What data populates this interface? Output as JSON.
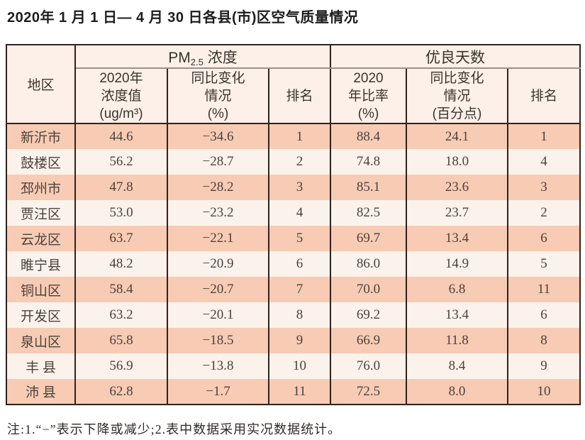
{
  "title": "2020年 1 月 1 日— 4 月 30 日各县(市)区空气质量情况",
  "table": {
    "region_header": "地区",
    "pm25_group": {
      "prefix": "PM",
      "subscript": "2.5",
      "suffix": " 浓度"
    },
    "days_group": "优良天数",
    "sub_headers": [
      {
        "id": "pm-value",
        "lines": [
          "2020年",
          "浓度值",
          "(ug/m³)"
        ]
      },
      {
        "id": "pm-change",
        "lines": [
          "同比变化",
          "情况",
          "(%)"
        ]
      },
      {
        "id": "pm-rank",
        "lines": [
          "排名"
        ]
      },
      {
        "id": "days-rate",
        "lines": [
          "2020",
          "年比率",
          "(%)"
        ]
      },
      {
        "id": "days-change",
        "lines": [
          "同比变化",
          "情况",
          "(百分点)"
        ]
      },
      {
        "id": "days-rank",
        "lines": [
          "排名"
        ]
      }
    ],
    "rows": [
      {
        "region": "新沂市",
        "pm_value": "44.6",
        "pm_change": "−34.6",
        "pm_rank": "1",
        "days_rate": "88.4",
        "days_change": "24.1",
        "days_rank": "1"
      },
      {
        "region": "鼓楼区",
        "pm_value": "56.2",
        "pm_change": "−28.7",
        "pm_rank": "2",
        "days_rate": "74.8",
        "days_change": "18.0",
        "days_rank": "4"
      },
      {
        "region": "邳州市",
        "pm_value": "47.8",
        "pm_change": "−28.2",
        "pm_rank": "3",
        "days_rate": "85.1",
        "days_change": "23.6",
        "days_rank": "3"
      },
      {
        "region": "贾汪区",
        "pm_value": "53.0",
        "pm_change": "−23.2",
        "pm_rank": "4",
        "days_rate": "82.5",
        "days_change": "23.7",
        "days_rank": "2"
      },
      {
        "region": "云龙区",
        "pm_value": "63.7",
        "pm_change": "−22.1",
        "pm_rank": "5",
        "days_rate": "69.7",
        "days_change": "13.4",
        "days_rank": "6"
      },
      {
        "region": "睢宁县",
        "pm_value": "48.2",
        "pm_change": "−20.9",
        "pm_rank": "6",
        "days_rate": "86.0",
        "days_change": "14.9",
        "days_rank": "5"
      },
      {
        "region": "铜山区",
        "pm_value": "58.4",
        "pm_change": "−20.7",
        "pm_rank": "7",
        "days_rate": "70.0",
        "days_change": "6.8",
        "days_rank": "11"
      },
      {
        "region": "开发区",
        "pm_value": "63.2",
        "pm_change": "−20.1",
        "pm_rank": "8",
        "days_rate": "69.2",
        "days_change": "13.4",
        "days_rank": "6"
      },
      {
        "region": "泉山区",
        "pm_value": "65.8",
        "pm_change": "−18.5",
        "pm_rank": "9",
        "days_rate": "66.9",
        "days_change": "11.8",
        "days_rank": "8"
      },
      {
        "region": "丰 县",
        "pm_value": "56.9",
        "pm_change": "−13.8",
        "pm_rank": "10",
        "days_rate": "76.0",
        "days_change": "8.4",
        "days_rank": "9"
      },
      {
        "region": "沛 县",
        "pm_value": "62.8",
        "pm_change": "−1.7",
        "pm_rank": "11",
        "days_rate": "72.5",
        "days_change": "8.0",
        "days_rank": "10"
      }
    ]
  },
  "note": "注:1.“−”表示下降或减少;2.表中数据采用实况数据统计。",
  "colors": {
    "border_dark": "#33211b",
    "border_gray": "#9c928b",
    "header_bg": "#fdf0e8",
    "row_salmon": "#f7cbb4",
    "row_light": "#fcf2ec",
    "text_data": "#4c423b",
    "text_header": "#3a332e",
    "text_title": "#1d1d1d"
  }
}
